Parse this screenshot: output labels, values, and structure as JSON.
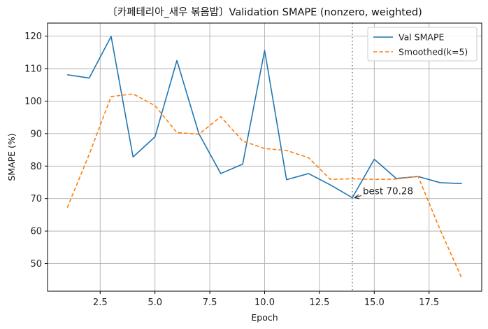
{
  "chart_data": {
    "type": "line",
    "title": "〔카페테리아_새우 볶음밥〕Validation SMAPE (nonzero, weighted)",
    "xlabel": "Epoch",
    "ylabel": "SMAPE (%)",
    "xlim": [
      0.1,
      19.9
    ],
    "ylim": [
      41.5,
      124.0
    ],
    "xticks": [
      2.5,
      5.0,
      7.5,
      10.0,
      12.5,
      15.0,
      17.5
    ],
    "xtick_labels": [
      "2.5",
      "5.0",
      "7.5",
      "10.0",
      "12.5",
      "15.0",
      "17.5"
    ],
    "yticks": [
      50,
      60,
      70,
      80,
      90,
      100,
      110,
      120
    ],
    "ytick_labels": [
      "50",
      "60",
      "70",
      "80",
      "90",
      "100",
      "110",
      "120"
    ],
    "grid": true,
    "legend_position": "top-right",
    "x": [
      1,
      2,
      3,
      4,
      5,
      6,
      7,
      8,
      9,
      10,
      11,
      12,
      13,
      14,
      15,
      16,
      17,
      18,
      19
    ],
    "series": [
      {
        "name": "Val SMAPE",
        "color": "#1f77b4",
        "style": "solid",
        "values": [
          108.1,
          107.1,
          119.9,
          82.8,
          89.0,
          112.5,
          90.0,
          77.7,
          80.6,
          115.6,
          75.8,
          77.7,
          74.2,
          70.28,
          82.1,
          76.2,
          76.8,
          74.9,
          74.6
        ]
      },
      {
        "name": "Smoothed(k=5)",
        "color": "#ff7f0e",
        "style": "dashed",
        "values": [
          67.2,
          83.6,
          101.4,
          102.2,
          98.6,
          90.3,
          89.8,
          95.2,
          87.7,
          85.4,
          84.8,
          82.6,
          75.9,
          76.1,
          75.9,
          76.0,
          76.8,
          60.5,
          45.4
        ]
      }
    ],
    "best_epoch": 14,
    "best_value": 70.28,
    "annotation": "best 70.28",
    "marker_line_color": "#7f7f7f"
  }
}
